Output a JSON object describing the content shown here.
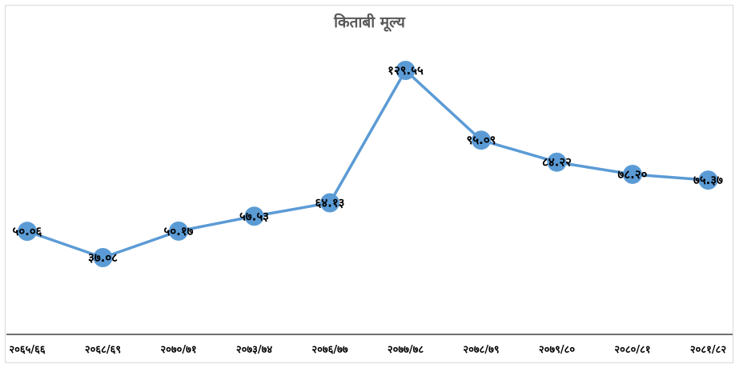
{
  "chart_data": {
    "type": "line",
    "title": "किताबी मूल्य",
    "categories": [
      "२०६५/६६",
      "२०६८/६९",
      "२०७०/७१",
      "२०७३/७४",
      "२०७६/७७",
      "२०७७/७८",
      "२०७८/७९",
      "२०७९/८०",
      "२०८०/८१",
      "२०८१/८२"
    ],
    "values": [
      50.06,
      37.08,
      50.17,
      57.53,
      64.13,
      129.55,
      95.09,
      84.22,
      78.2,
      75.37
    ],
    "data_labels": [
      "५०.०६",
      "३७.०८",
      "५०.१७",
      "५७.५३",
      "६४.१३",
      "१२९.५५",
      "९५.०९",
      "८४.२२",
      "७८.२०",
      "७५.३७"
    ],
    "ylim": [
      0,
      140
    ],
    "grid": false,
    "legend": "none",
    "colors": {
      "line": "#5b9bd5",
      "marker": "#5b9bd5",
      "axis": "#404040"
    }
  }
}
